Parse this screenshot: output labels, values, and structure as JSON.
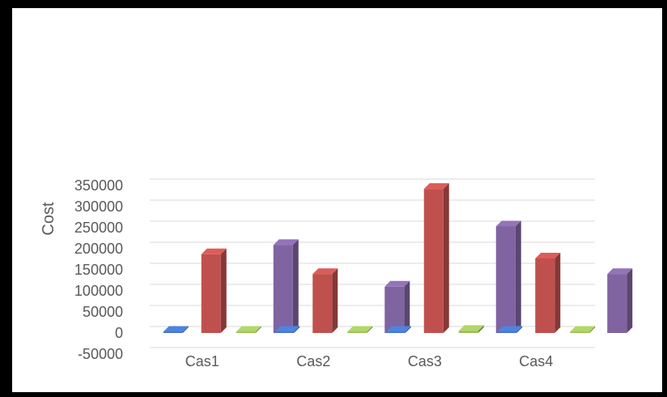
{
  "chart_data": {
    "type": "bar",
    "title": "",
    "xlabel": "",
    "ylabel": "Cost",
    "ylim": [
      -50000,
      350000
    ],
    "yticks": [
      -50000,
      0,
      50000,
      100000,
      150000,
      200000,
      250000,
      300000,
      350000
    ],
    "grid": true,
    "legend": "none",
    "categories": [
      "Cas1",
      "Cas2",
      "Cas3",
      "Cas4"
    ],
    "series": [
      {
        "color": "#4472c4",
        "values": [
          0,
          0,
          0,
          0
        ]
      },
      {
        "color": "#c0504d",
        "values": [
          187000,
          140000,
          342000,
          177000
        ]
      },
      {
        "color": "#9bbb59",
        "values": [
          1500,
          2500,
          5000,
          2500
        ]
      },
      {
        "color": "#8064a2",
        "values": [
          209000,
          110000,
          253000,
          140000
        ]
      }
    ]
  }
}
